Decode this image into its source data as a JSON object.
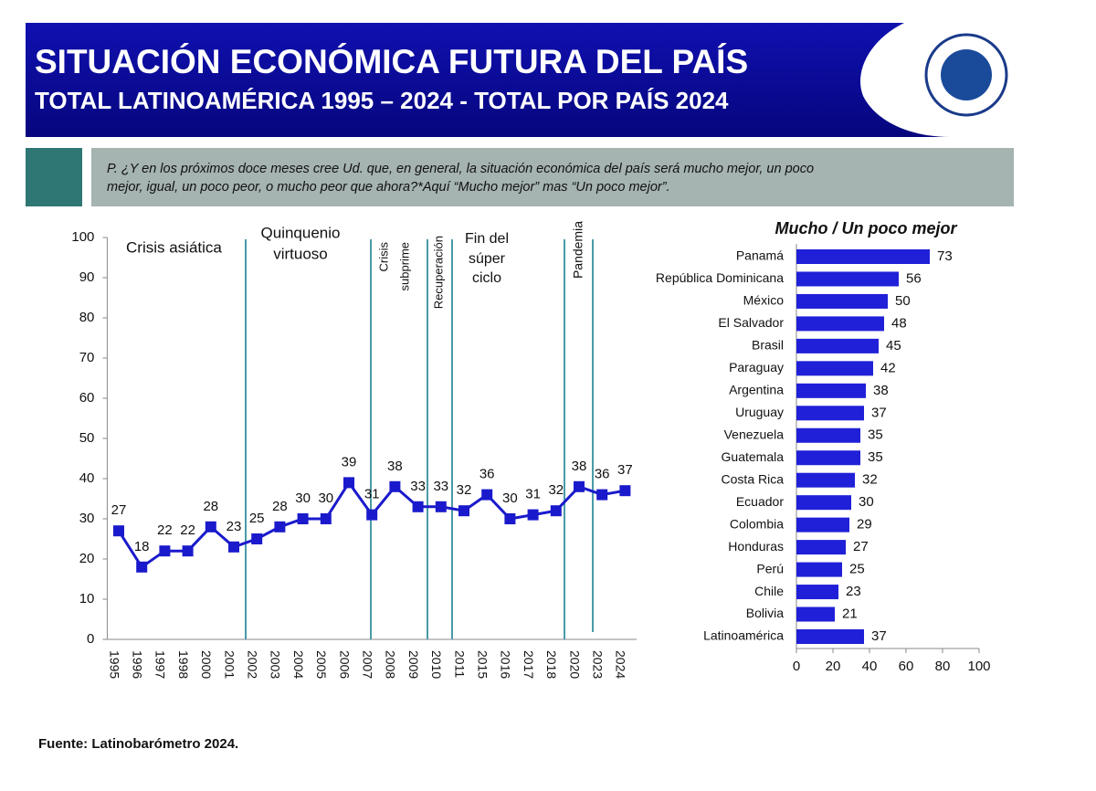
{
  "header": {
    "title": "SITUACIÓN ECONÓMICA FUTURA DEL PAÍS",
    "subtitle": "TOTAL LATINOAMÉRICA 1995 – 2024 - TOTAL POR PAÍS 2024"
  },
  "question": [
    "P. ¿Y en los próximos doce meses cree Ud. que, en general, la situación económica del país será mucho mejor, un poco",
    "mejor, igual, un poco peor, o mucho peor que ahora?*Aquí “Mucho mejor” mas “Un poco mejor”."
  ],
  "source": "Fuente: Latinobarómetro 2024.",
  "chart_data": [
    {
      "type": "line",
      "categories": [
        "1995",
        "1996",
        "1997",
        "1998",
        "2000",
        "2001",
        "2002",
        "2003",
        "2004",
        "2005",
        "2006",
        "2007",
        "2008",
        "2009",
        "2010",
        "2011",
        "2015",
        "2016",
        "2017",
        "2018",
        "2020",
        "2023",
        "2024"
      ],
      "values": [
        27,
        18,
        22,
        22,
        28,
        23,
        25,
        28,
        30,
        30,
        39,
        31,
        38,
        33,
        33,
        32,
        36,
        30,
        31,
        32,
        38,
        36,
        37
      ],
      "color": "#1a1acc",
      "ylim": [
        0,
        100
      ],
      "yticks": [
        0,
        10,
        20,
        30,
        40,
        50,
        60,
        70,
        80,
        90,
        100
      ],
      "annotations": [
        [
          "Crisis asiática"
        ],
        [
          "Quinquenio",
          "virtuoso"
        ],
        [
          "Crisis",
          "subprime"
        ],
        [
          "Recuperación"
        ],
        [
          "Fin del",
          "súper",
          "ciclo"
        ],
        [
          "Pandemia"
        ]
      ]
    },
    {
      "type": "hbar",
      "title": "Mucho /  Un poco mejor",
      "categories": [
        "Panamá",
        "República Dominicana",
        "México",
        "El Salvador",
        "Brasil",
        "Paraguay",
        "Argentina",
        "Uruguay",
        "Venezuela",
        "Guatemala",
        "Costa Rica",
        "Ecuador",
        "Colombia",
        "Honduras",
        "Perú",
        "Chile",
        "Bolivia",
        "Latinoamérica"
      ],
      "values": [
        73,
        56,
        50,
        48,
        45,
        42,
        38,
        37,
        35,
        35,
        32,
        30,
        29,
        27,
        25,
        23,
        21,
        37
      ],
      "color": "#2020d8",
      "xlim": [
        0,
        100
      ],
      "xticks": [
        0,
        20,
        40,
        60,
        80,
        100
      ]
    }
  ]
}
